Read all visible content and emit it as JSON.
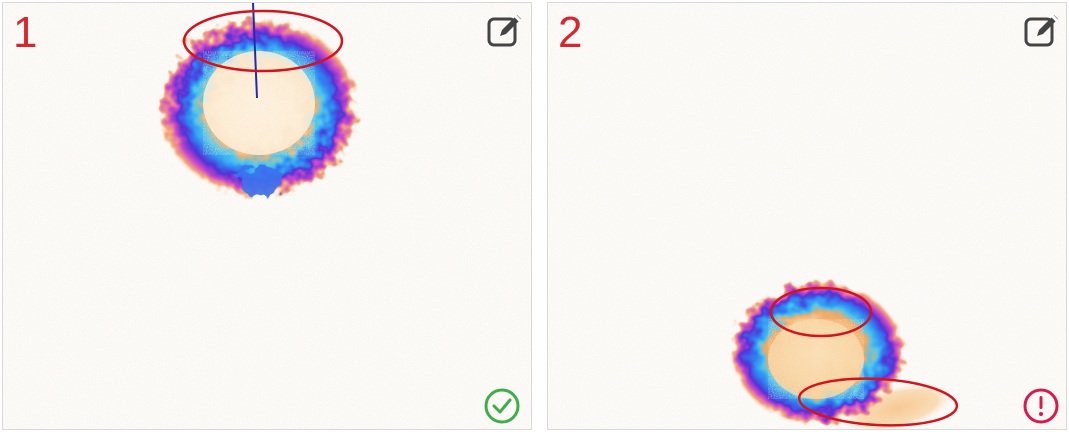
{
  "panels": [
    {
      "number": "1",
      "status": "ok",
      "status_icon": "check-circle-icon",
      "status_color": "#3fae49"
    },
    {
      "number": "2",
      "status": "warning",
      "status_icon": "exclamation-circle-icon",
      "status_color": "#d81b4f"
    }
  ],
  "colors": {
    "panel_number": "#d8262e",
    "annotation_ellipse": "#d4141c",
    "center_line": "#1e2bb0",
    "edit_icon": "#444444"
  }
}
